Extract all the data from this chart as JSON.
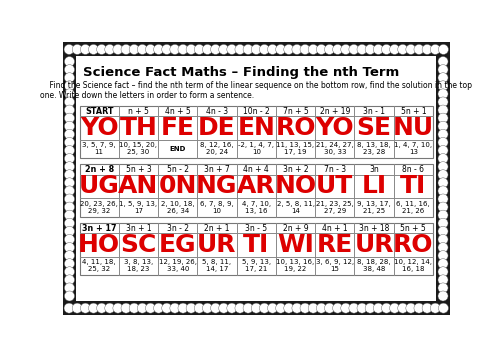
{
  "title": "Science Fact Maths – Finding the nth Term",
  "instruction": "    Find the Science fact – find the nth term of the linear sequence on the bottom row, find the solution in the top\none. Write down the letters in order to form a sentence.",
  "bg_color": "#ffffff",
  "border_bg": "#000000",
  "dot_fill": "#ffffff",
  "inner_bg": "#ffffff",
  "table_border_color": "#888888",
  "red_color": "#dd0000",
  "rows": [
    {
      "formulas": [
        "START",
        "n + 5",
        "4n + 5",
        "4n - 3",
        "10n - 2",
        "7n + 5",
        "2n + 19",
        "3n - 1",
        "5n + 1"
      ],
      "letters": [
        "YO",
        "TH",
        "FE",
        "DE",
        "EN",
        "RO",
        "YO",
        "SE",
        "NU"
      ],
      "sequences": [
        "3, 5, 7, 9,\n11",
        "10, 15, 20,\n25, 30",
        "END",
        "8, 12, 16,\n20, 24",
        "-2, 1, 4, 7,\n10",
        "11, 13, 15,\n17, 19",
        "21, 24, 27,\n30, 33",
        "8, 13, 18,\n23, 28",
        "1, 4, 7, 10,\n13"
      ]
    },
    {
      "formulas": [
        "2n + 8",
        "5n + 3",
        "5n - 2",
        "3n + 7",
        "4n + 4",
        "3n + 2",
        "7n - 3",
        "3n",
        "8n - 6"
      ],
      "letters": [
        "UG",
        "AN",
        "0N",
        "NG",
        "AR",
        "NO",
        "UT",
        "LI",
        "TI"
      ],
      "sequences": [
        "20, 23, 26,\n29, 32",
        "1, 5, 9, 13,\n17",
        "2, 10, 18,\n26, 34",
        "6, 7, 8, 9,\n10",
        "4, 7, 10,\n13, 16",
        "2, 5, 8, 11,\n14",
        "21, 23, 25,\n27, 29",
        "9, 13, 17,\n21, 25",
        "6, 11, 16,\n21, 26"
      ]
    },
    {
      "formulas": [
        "3n + 17",
        "3n + 1",
        "3n - 2",
        "2n + 1",
        "3n - 5",
        "2n + 9",
        "4n + 1",
        "3n + 18",
        "5n + 5"
      ],
      "letters": [
        "HO",
        "SC",
        "EG",
        "UR",
        "TI",
        "WI",
        "RE",
        "UR",
        "RO"
      ],
      "sequences": [
        "4, 11, 18,\n25, 32",
        "3, 8, 13,\n18, 23",
        "12, 19, 26,\n33, 40",
        "5, 8, 11,\n14, 17",
        "5, 9, 13,\n17, 21",
        "10, 13, 16,\n19, 22",
        "3, 6, 9, 12,\n15",
        "8, 18, 28,\n38, 48",
        "10, 12, 14,\n16, 18"
      ]
    }
  ],
  "formula_bold": [
    0
  ],
  "seq_bold": [
    2
  ]
}
